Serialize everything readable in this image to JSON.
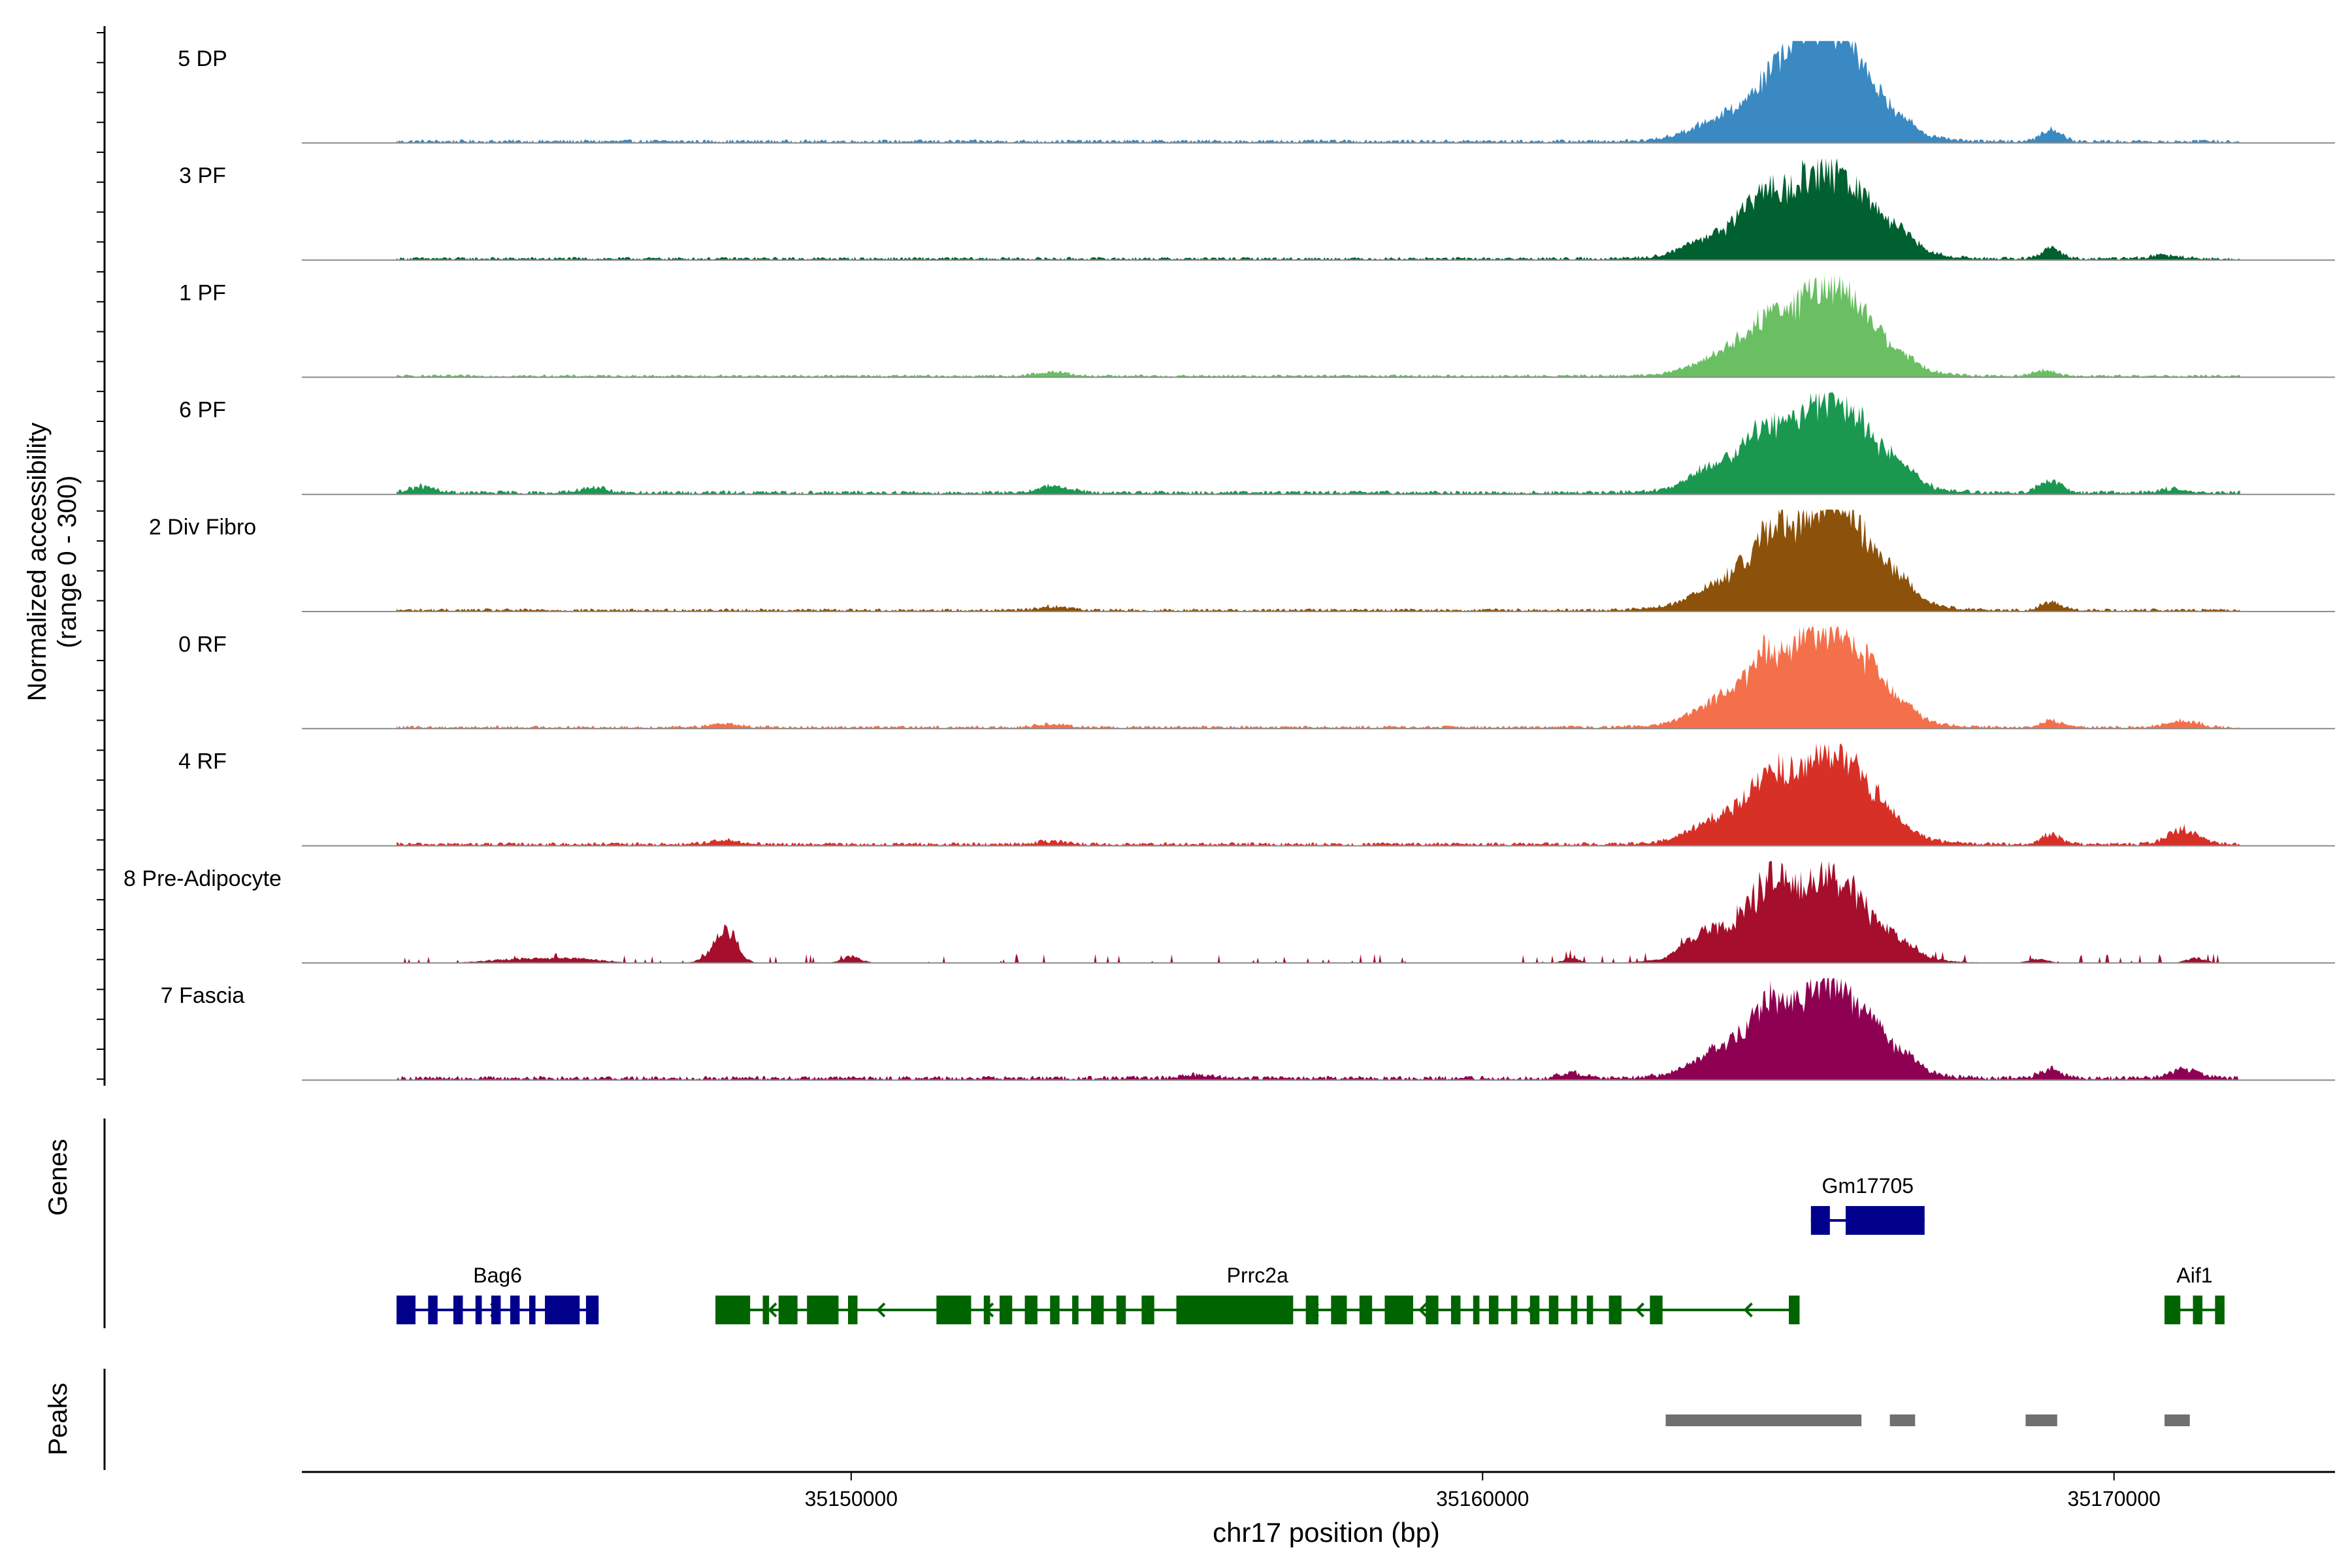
{
  "chart_data": {
    "type": "area",
    "xlabel": "chr17 position (bp)",
    "ylabel_line1": "Normalized accessibility",
    "ylabel_line2": "(range 0 - 300)",
    "y_range": [
      0,
      300
    ],
    "x_range": [
      35141300,
      35173500
    ],
    "x_ticks": [
      {
        "value": 35150000,
        "label": "35150000"
      },
      {
        "value": 35160000,
        "label": "35160000"
      },
      {
        "value": 35170000,
        "label": "35170000"
      }
    ],
    "genes_label": "Genes",
    "peaks_label": "Peaks",
    "track_extent": [
      35142800,
      35172000
    ],
    "tracks": [
      {
        "label": "5 DP",
        "color": "#3A89C2",
        "noise": 0.045,
        "peaks": [
          [
            35163500,
            330,
            0.11
          ],
          [
            35164050,
            260,
            0.07
          ],
          [
            35164700,
            300,
            0.1
          ],
          [
            35165050,
            900,
            0.85
          ],
          [
            35165300,
            520,
            0.78
          ],
          [
            35165700,
            560,
            0.6
          ],
          [
            35166700,
            150,
            0.1
          ],
          [
            35169000,
            160,
            0.2
          ]
        ]
      },
      {
        "label": "3 PF",
        "color": "#006030",
        "noise": 0.04,
        "peaks": [
          [
            35163400,
            300,
            0.12
          ],
          [
            35164050,
            260,
            0.12
          ],
          [
            35164400,
            200,
            0.3
          ],
          [
            35165050,
            900,
            0.92
          ],
          [
            35165700,
            600,
            0.7
          ],
          [
            35166700,
            150,
            0.1
          ],
          [
            35169000,
            160,
            0.17
          ],
          [
            35170800,
            300,
            0.05
          ]
        ]
      },
      {
        "label": "1 PF",
        "color": "#6ABF63",
        "noise": 0.035,
        "peaks": [
          [
            35153200,
            250,
            0.07
          ],
          [
            35163600,
            320,
            0.08
          ],
          [
            35164100,
            250,
            0.12
          ],
          [
            35164550,
            200,
            0.25
          ],
          [
            35165100,
            900,
            0.9
          ],
          [
            35165700,
            500,
            0.72
          ],
          [
            35166750,
            150,
            0.08
          ],
          [
            35168900,
            160,
            0.1
          ]
        ]
      },
      {
        "label": "6 PF",
        "color": "#1A9850",
        "noise": 0.05,
        "peaks": [
          [
            35143200,
            200,
            0.1
          ],
          [
            35145900,
            200,
            0.09
          ],
          [
            35153200,
            250,
            0.1
          ],
          [
            35163500,
            320,
            0.2
          ],
          [
            35164050,
            260,
            0.16
          ],
          [
            35164400,
            200,
            0.3
          ],
          [
            35165100,
            900,
            0.82
          ],
          [
            35165650,
            600,
            0.8
          ],
          [
            35166700,
            150,
            0.12
          ],
          [
            35169000,
            180,
            0.2
          ],
          [
            35170900,
            200,
            0.06
          ]
        ]
      },
      {
        "label": "2 Div Fibro",
        "color": "#8C510A",
        "noise": 0.04,
        "peaks": [
          [
            35153200,
            250,
            0.06
          ],
          [
            35163500,
            300,
            0.09
          ],
          [
            35164000,
            260,
            0.1
          ],
          [
            35164500,
            200,
            0.3
          ],
          [
            35165000,
            900,
            1.0
          ],
          [
            35165700,
            600,
            0.88
          ],
          [
            35166700,
            150,
            0.14
          ],
          [
            35169000,
            160,
            0.13
          ]
        ]
      },
      {
        "label": "0 RF",
        "color": "#F4704A",
        "noise": 0.04,
        "peaks": [
          [
            35148000,
            250,
            0.06
          ],
          [
            35153200,
            250,
            0.05
          ],
          [
            35163500,
            300,
            0.12
          ],
          [
            35164000,
            260,
            0.14
          ],
          [
            35164500,
            200,
            0.35
          ],
          [
            35165050,
            900,
            1.0
          ],
          [
            35165700,
            550,
            0.8
          ],
          [
            35166750,
            150,
            0.08
          ],
          [
            35169000,
            160,
            0.11
          ],
          [
            35171100,
            250,
            0.1
          ]
        ]
      },
      {
        "label": "4 RF",
        "color": "#D73027",
        "noise": 0.045,
        "peaks": [
          [
            35148000,
            250,
            0.06
          ],
          [
            35153200,
            250,
            0.05
          ],
          [
            35163500,
            300,
            0.14
          ],
          [
            35164000,
            260,
            0.1
          ],
          [
            35164500,
            200,
            0.4
          ],
          [
            35165050,
            900,
            0.9
          ],
          [
            35165700,
            550,
            0.72
          ],
          [
            35169000,
            160,
            0.17
          ],
          [
            35171100,
            250,
            0.24
          ]
        ]
      },
      {
        "label": "8 Pre-Adipocyte",
        "color": "#A50F2B",
        "noise": 0.05,
        "sparse": true,
        "peaks": [
          [
            35144800,
            500,
            0.07
          ],
          [
            35145700,
            400,
            0.06
          ],
          [
            35148050,
            160,
            0.45
          ],
          [
            35147850,
            180,
            0.15
          ],
          [
            35150000,
            150,
            0.1
          ],
          [
            35161400,
            120,
            0.08
          ],
          [
            35163300,
            200,
            0.15
          ],
          [
            35163600,
            150,
            0.18
          ],
          [
            35164150,
            200,
            0.14
          ],
          [
            35164550,
            150,
            0.3
          ],
          [
            35165000,
            900,
            1.2
          ],
          [
            35165700,
            400,
            0.5
          ],
          [
            35166500,
            160,
            0.08
          ],
          [
            35166750,
            180,
            0.1
          ],
          [
            35168800,
            150,
            0.07
          ],
          [
            35171300,
            150,
            0.08
          ]
        ]
      },
      {
        "label": "7 Fascia",
        "color": "#8E0152",
        "noise": 0.055,
        "peaks": [
          [
            35155500,
            300,
            0.05
          ],
          [
            35161400,
            200,
            0.08
          ],
          [
            35163500,
            300,
            0.12
          ],
          [
            35164000,
            260,
            0.15
          ],
          [
            35164500,
            200,
            0.35
          ],
          [
            35165050,
            900,
            0.97
          ],
          [
            35165700,
            550,
            0.76
          ],
          [
            35166750,
            150,
            0.12
          ],
          [
            35169000,
            180,
            0.14
          ],
          [
            35171100,
            250,
            0.14
          ]
        ]
      }
    ],
    "genes": [
      {
        "name": "Bag6",
        "strand": "+",
        "color": "#00008B",
        "row": 2,
        "start": 35142800,
        "end": 35146000,
        "exons": [
          [
            35142800,
            35143100
          ],
          [
            35143300,
            35143450
          ],
          [
            35143700,
            35143850
          ],
          [
            35144050,
            35144150
          ],
          [
            35144300,
            35144450
          ],
          [
            35144600,
            35144750
          ],
          [
            35144900,
            35145000
          ],
          [
            35145150,
            35145700
          ],
          [
            35145800,
            35146000
          ]
        ]
      },
      {
        "name": "Prrc2a",
        "strand": "-",
        "color": "#006400",
        "row": 2,
        "start": 35147850,
        "end": 35165020,
        "exons": [
          [
            35147850,
            35148400
          ],
          [
            35148600,
            35148700
          ],
          [
            35148850,
            35149150
          ],
          [
            35149300,
            35149800
          ],
          [
            35149950,
            35150100
          ],
          [
            35151350,
            35151900
          ],
          [
            35152100,
            35152200
          ],
          [
            35152350,
            35152550
          ],
          [
            35152750,
            35152950
          ],
          [
            35153150,
            35153300
          ],
          [
            35153500,
            35153600
          ],
          [
            35153800,
            35154000
          ],
          [
            35154200,
            35154350
          ],
          [
            35154600,
            35154800
          ],
          [
            35155150,
            35157000
          ],
          [
            35157200,
            35157400
          ],
          [
            35157600,
            35157850
          ],
          [
            35158050,
            35158250
          ],
          [
            35158450,
            35158900
          ],
          [
            35159100,
            35159300
          ],
          [
            35159500,
            35159650
          ],
          [
            35159850,
            35159950
          ],
          [
            35160100,
            35160250
          ],
          [
            35160450,
            35160550
          ],
          [
            35160750,
            35160900
          ],
          [
            35161050,
            35161200
          ],
          [
            35161400,
            35161500
          ],
          [
            35161650,
            35161750
          ],
          [
            35162000,
            35162200
          ],
          [
            35162650,
            35162850
          ],
          [
            35164850,
            35165020
          ]
        ]
      },
      {
        "name": "Gm17705",
        "strand": "+",
        "color": "#00008B",
        "row": 1,
        "start": 35165200,
        "end": 35167000,
        "exons": [
          [
            35165200,
            35165500
          ],
          [
            35165750,
            35167000
          ]
        ]
      },
      {
        "name": "Aif1",
        "strand": "-",
        "color": "#006400",
        "row": 2,
        "start": 35170800,
        "end": 35171750,
        "exons": [
          [
            35170800,
            35171050
          ],
          [
            35171250,
            35171400
          ],
          [
            35171600,
            35171750
          ]
        ]
      }
    ],
    "peaks": [
      {
        "start": 35162900,
        "end": 35166000
      },
      {
        "start": 35166450,
        "end": 35166850
      },
      {
        "start": 35168600,
        "end": 35169100
      },
      {
        "start": 35170800,
        "end": 35171200
      }
    ]
  }
}
